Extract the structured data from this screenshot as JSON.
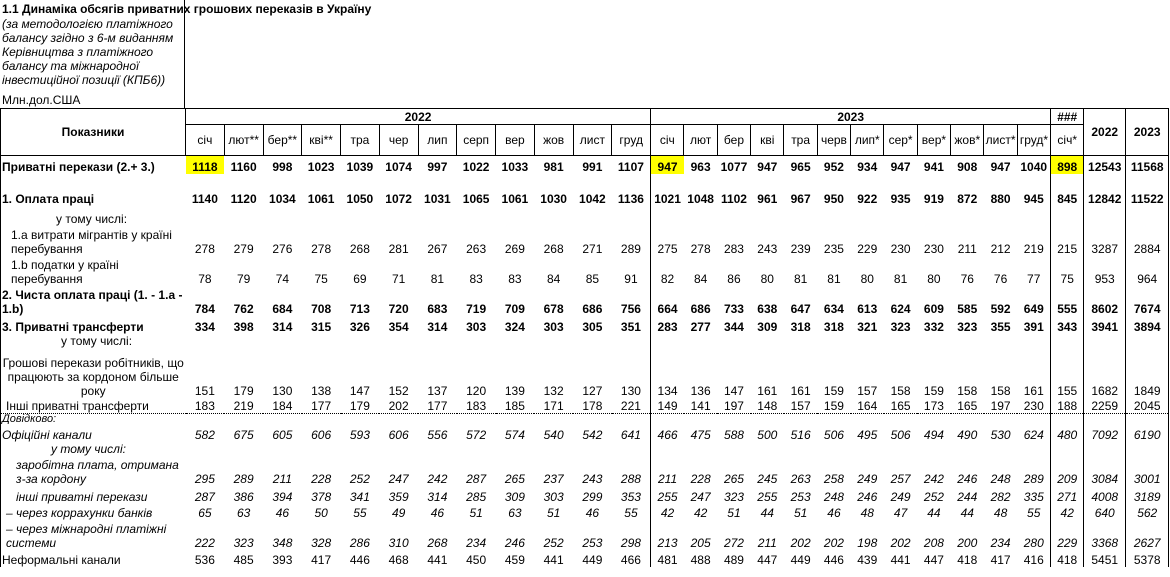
{
  "title": "1.1 Динаміка обсягів приватних грошових переказів в Україну",
  "subtitle": "(за методологією платіжного балансу згідно з 6-м виданням Керівництва з платіжного балансу та міжнародної інвестиційної позиції (КПБ6))",
  "unit": "Млн.дол.США",
  "header": {
    "indicator": "Показники",
    "year_a": "2022",
    "year_b": "2023",
    "extra": "###",
    "total_a": "2022",
    "total_b": "2023"
  },
  "months_a": [
    "січ",
    "лют**",
    "бер**",
    "кві**",
    "тра",
    "чер",
    "лип",
    "серп",
    "вер",
    "жов",
    "лист",
    "груд"
  ],
  "months_b": [
    "січ",
    "лют",
    "бер",
    "кві",
    "тра",
    "черв",
    "лип*",
    "сер*",
    "вер*",
    "жов*",
    "лист*",
    "груд*"
  ],
  "extra_month": "січ*",
  "rows": [
    {
      "label": "Приватні перекази (2.+ 3.)",
      "values": [
        1118,
        1160,
        998,
        1023,
        1039,
        1074,
        997,
        1022,
        1033,
        981,
        991,
        1107,
        947,
        963,
        1077,
        947,
        965,
        952,
        934,
        947,
        941,
        908,
        947,
        1040,
        898,
        12543,
        11568
      ]
    },
    {
      "label": "1. Оплата праці",
      "values": [
        1140,
        1120,
        1034,
        1061,
        1050,
        1072,
        1031,
        1065,
        1061,
        1030,
        1042,
        1136,
        1021,
        1048,
        1102,
        961,
        967,
        950,
        922,
        935,
        919,
        872,
        880,
        945,
        845,
        12842,
        11522
      ]
    },
    {
      "label": "у тому числі:"
    },
    {
      "label": "1.a  витрати мігрантів у країні перебування",
      "values": [
        278,
        279,
        276,
        278,
        268,
        281,
        267,
        263,
        269,
        268,
        271,
        289,
        275,
        278,
        283,
        243,
        239,
        235,
        229,
        230,
        230,
        211,
        212,
        219,
        215,
        3287,
        2884
      ]
    },
    {
      "label": "1.b  податки у країні перебування",
      "values": [
        78,
        79,
        74,
        75,
        69,
        71,
        81,
        83,
        83,
        84,
        85,
        91,
        82,
        84,
        86,
        80,
        81,
        81,
        80,
        81,
        80,
        76,
        76,
        77,
        75,
        953,
        964
      ]
    },
    {
      "label": "2. Чиста оплата праці  (1. - 1.a - 1.b)",
      "values": [
        784,
        762,
        684,
        708,
        713,
        720,
        683,
        719,
        709,
        678,
        686,
        756,
        664,
        686,
        733,
        638,
        647,
        634,
        613,
        624,
        609,
        585,
        592,
        649,
        555,
        8602,
        7674
      ]
    },
    {
      "label": "3. Приватні трансферти",
      "values": [
        334,
        398,
        314,
        315,
        326,
        354,
        314,
        303,
        324,
        303,
        305,
        351,
        283,
        277,
        344,
        309,
        318,
        318,
        321,
        323,
        332,
        323,
        355,
        391,
        343,
        3941,
        3894
      ]
    },
    {
      "label": "у тому числі:"
    },
    {
      "label": "Грошові перекази робітників, що працюють за кордоном більше року",
      "values": [
        151,
        179,
        130,
        138,
        147,
        152,
        137,
        120,
        139,
        132,
        127,
        130,
        134,
        136,
        147,
        161,
        161,
        159,
        157,
        158,
        159,
        158,
        158,
        161,
        155,
        1682,
        1849
      ]
    },
    {
      "label": "Інші приватні  трансферти",
      "values": [
        183,
        219,
        184,
        177,
        179,
        202,
        177,
        183,
        185,
        171,
        178,
        221,
        149,
        141,
        197,
        148,
        157,
        159,
        164,
        165,
        173,
        165,
        197,
        230,
        188,
        2259,
        2045
      ]
    },
    {
      "label": "Довідково:"
    },
    {
      "label": "Офіційні канали",
      "values": [
        582,
        675,
        605,
        606,
        593,
        606,
        556,
        572,
        574,
        540,
        542,
        641,
        466,
        475,
        588,
        500,
        516,
        506,
        495,
        506,
        494,
        490,
        530,
        624,
        480,
        7092,
        6190
      ]
    },
    {
      "label": "у тому числі:"
    },
    {
      "label": "заробітна плата, отримана з-за кордону",
      "values": [
        295,
        289,
        211,
        228,
        252,
        247,
        242,
        287,
        265,
        237,
        243,
        288,
        211,
        228,
        265,
        245,
        263,
        258,
        249,
        257,
        242,
        246,
        248,
        289,
        209,
        3084,
        3001
      ]
    },
    {
      "label": "інші приватні перекази",
      "values": [
        287,
        386,
        394,
        378,
        341,
        359,
        314,
        285,
        309,
        303,
        299,
        353,
        255,
        247,
        323,
        255,
        253,
        248,
        246,
        249,
        252,
        244,
        282,
        335,
        271,
        4008,
        3189
      ]
    },
    {
      "label": "–  через коррахунки банків",
      "values": [
        65,
        63,
        46,
        50,
        55,
        49,
        46,
        51,
        63,
        51,
        46,
        55,
        42,
        42,
        51,
        44,
        51,
        46,
        48,
        47,
        44,
        44,
        48,
        55,
        42,
        640,
        562
      ]
    },
    {
      "label": "–  через  міжнародні платіжні системи",
      "values": [
        222,
        323,
        348,
        328,
        286,
        310,
        268,
        234,
        246,
        252,
        253,
        298,
        213,
        205,
        272,
        211,
        202,
        202,
        198,
        202,
        208,
        200,
        234,
        280,
        229,
        3368,
        2627
      ]
    },
    {
      "label": "Неформальні канали",
      "values": [
        536,
        485,
        393,
        417,
        446,
        468,
        441,
        450,
        459,
        441,
        449,
        466,
        481,
        488,
        489,
        447,
        449,
        446,
        439,
        441,
        447,
        418,
        417,
        416,
        418,
        5451,
        5378
      ]
    }
  ]
}
